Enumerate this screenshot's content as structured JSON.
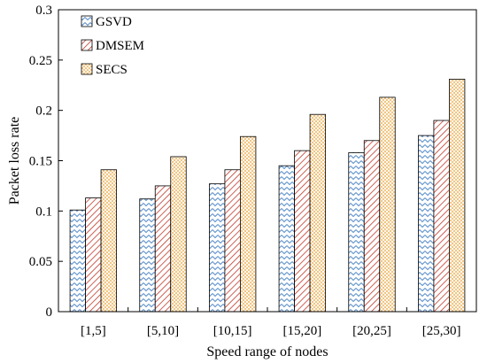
{
  "chart_data": {
    "type": "bar",
    "title": "",
    "xlabel": "Speed range of nodes",
    "ylabel": "Packet loss rate",
    "ylim": [
      0,
      0.3
    ],
    "yticks": [
      0,
      0.05,
      0.1,
      0.15,
      0.2,
      0.25,
      0.3
    ],
    "ytick_labels": [
      "0",
      "0.05",
      "0.1",
      "0.15",
      "0.2",
      "0.25",
      "0.3"
    ],
    "grid": false,
    "legend_position": "top-left",
    "categories": [
      "[1,5]",
      "[5,10]",
      "[10,15]",
      "[15,20]",
      "[20,25]",
      "[25,30]"
    ],
    "series": [
      {
        "name": "GSVD",
        "values": [
          0.101,
          0.112,
          0.127,
          0.145,
          0.158,
          0.175
        ],
        "color": "#5b8fc9",
        "pattern": "zigzag"
      },
      {
        "name": "DMSEM",
        "values": [
          0.113,
          0.125,
          0.141,
          0.16,
          0.17,
          0.19
        ],
        "color": "#c0392b",
        "pattern": "diagonal"
      },
      {
        "name": "SECS",
        "values": [
          0.141,
          0.154,
          0.174,
          0.196,
          0.213,
          0.231
        ],
        "color": "#e6a23c",
        "pattern": "dots"
      }
    ]
  }
}
